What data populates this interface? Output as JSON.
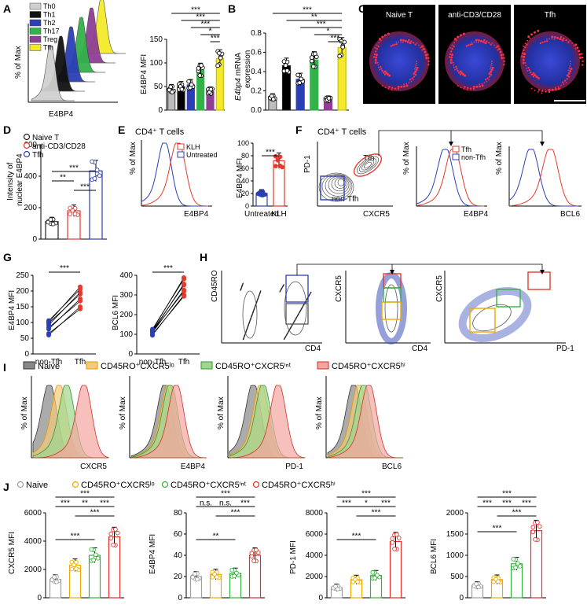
{
  "figure": {
    "colors": {
      "gray": "#bdbdbd",
      "black": "#111111",
      "blue": "#2b3fb5",
      "green": "#33b24a",
      "purple": "#8e3f94",
      "yellow": "#f4ea2b",
      "red": "#e23b2e",
      "naive": "#9e9e9e",
      "lo": "#f0a900",
      "int": "#36b23c",
      "hi": "#e0302a"
    },
    "panels": {
      "A": {
        "letter": "A",
        "hist": {
          "ylabel": "% of Max",
          "xlabel": "E4BP4",
          "legend": [
            "Th0",
            "Th1",
            "Th2",
            "Th17",
            "Treg",
            "Tfh"
          ]
        },
        "bar": {
          "ylabel": "E4BP4 MFI",
          "ticks": [
            "0",
            "50",
            "100",
            "150"
          ]
        }
      },
      "B": {
        "letter": "B",
        "ylabel": "E4bp4 mRNA expression",
        "ylabel_italic": "E4bp4",
        "ylabel_rest": " mRNA",
        "ylabel_line2": "expression",
        "ticks": [
          "0.0",
          "0.2",
          "0.4",
          "0.6",
          "0.8"
        ]
      },
      "C": {
        "letter": "C",
        "labels": [
          "Naive T",
          "anti-CD3/CD28",
          "Tfh"
        ]
      },
      "D": {
        "letter": "D",
        "ylabel_line1": "Intensity of",
        "ylabel_line2": "nuclear E4BP4",
        "ticks": [
          "0",
          "200",
          "400",
          "600"
        ],
        "legend": [
          "Naive T",
          "anti-CD3/CD28",
          "Tfh"
        ]
      },
      "E": {
        "letter": "E",
        "title": "CD4⁺ T cells",
        "hist_ylabel": "% of Max",
        "hist_xlabel": "E4BP4",
        "legend": [
          "KLH",
          "Untreated"
        ],
        "bar_ylabel": "E4BP4 MFI",
        "ticks": [
          "0",
          "20",
          "40",
          "60",
          "80",
          "100"
        ],
        "categories": [
          "Untreated",
          "KLH"
        ]
      },
      "F": {
        "letter": "F",
        "title": "CD4⁺ T cells",
        "y1": "PD-1",
        "x1": "CXCR5",
        "tfh": "Tfh",
        "nontfh": "non-Tfh",
        "y2": "% of Max",
        "x2": "E4BP4",
        "x3": "BCL6",
        "legend": [
          "Tfh",
          "non-Tfh"
        ]
      },
      "G": {
        "letter": "G",
        "left_ylabel": "E4BP4 MFI",
        "left_ticks": [
          "0",
          "50",
          "100",
          "150",
          "200",
          "250"
        ],
        "right_ylabel": "BCL6 MFI",
        "right_ticks": [
          "0",
          "100",
          "200",
          "300",
          "400"
        ],
        "categories": [
          "non-Tfh",
          "Tfh"
        ]
      },
      "H": {
        "letter": "H",
        "y1": "CD45RO",
        "x1": "CD4",
        "y2": "CXCR5",
        "x2": "CD4",
        "y3": "CXCR5",
        "x3": "PD-1"
      },
      "I": {
        "letter": "I",
        "legend": [
          "Naive",
          "CD45RO⁺CXCR5ˡᵒ",
          "CD45RO⁺CXCR5ⁱⁿᵗ",
          "CD45RO⁺CXCR5ʰⁱ"
        ],
        "ylabel": "% of Max",
        "xlabels": [
          "CXCR5",
          "E4BP4",
          "PD-1",
          "BCL6"
        ]
      },
      "J": {
        "letter": "J",
        "legend": [
          "Naive",
          "CD45RO⁺CXCR5ˡᵒ",
          "CD45RO⁺CXCR5ⁱⁿᵗ",
          "CD45RO⁺CXCR5ʰⁱ"
        ],
        "ylabels": [
          "CXCR5 MFI",
          "E4BP4 MFI",
          "PD-1 MFI",
          "BCL6 MFI"
        ],
        "ticks": [
          [
            "0",
            "2000",
            "4000",
            "6000"
          ],
          [
            "0",
            "20",
            "40",
            "60",
            "80"
          ],
          [
            "0",
            "2000",
            "4000",
            "6000",
            "8000"
          ],
          [
            "0",
            "500",
            "1000",
            "1500",
            "2000"
          ]
        ]
      }
    }
  },
  "chart_data": [
    {
      "panel": "A",
      "type": "bar",
      "categories": [
        "Th0",
        "Th1",
        "Th2",
        "Th17",
        "Treg",
        "Tfh"
      ],
      "values": [
        47,
        53,
        57,
        90,
        42,
        117
      ],
      "ylabel": "E4BP4 MFI",
      "ylim": [
        0,
        160
      ],
      "significance": [
        "***",
        "***",
        "***",
        "***",
        "*",
        "***"
      ]
    },
    {
      "panel": "B",
      "type": "bar",
      "categories": [
        "Th0",
        "Th1",
        "Th2",
        "Th17",
        "Treg",
        "Tfh"
      ],
      "values": [
        0.13,
        0.46,
        0.32,
        0.52,
        0.11,
        0.65
      ],
      "ylabel": "E4bp4 mRNA expression",
      "ylim": [
        0,
        0.8
      ],
      "significance": [
        "***",
        "**",
        "***",
        "*",
        "***"
      ]
    },
    {
      "panel": "D",
      "type": "bar",
      "categories": [
        "Naive T",
        "anti-CD3/CD28",
        "Tfh"
      ],
      "values": [
        120,
        195,
        470
      ],
      "ylabel": "Intensity of nuclear E4BP4",
      "ylim": [
        0,
        650
      ],
      "significance": [
        "**",
        "***",
        "***"
      ]
    },
    {
      "panel": "E",
      "type": "bar",
      "categories": [
        "Untreated",
        "KLH"
      ],
      "values": [
        20,
        72
      ],
      "ylabel": "E4BP4 MFI",
      "ylim": [
        0,
        100
      ],
      "significance": [
        "***"
      ]
    },
    {
      "panel": "G-left",
      "type": "scatter",
      "categories": [
        "non-Tfh",
        "Tfh"
      ],
      "pairs_low": [
        60,
        75,
        90,
        100
      ],
      "pairs_high": [
        150,
        180,
        200,
        215
      ],
      "ylabel": "E4BP4 MFI",
      "ylim": [
        0,
        250
      ],
      "significance": [
        "***"
      ]
    },
    {
      "panel": "G-right",
      "type": "scatter",
      "categories": [
        "non-Tfh",
        "Tfh"
      ],
      "pairs_low": [
        95,
        105,
        110,
        120
      ],
      "pairs_high": [
        300,
        330,
        360,
        390
      ],
      "ylabel": "BCL6 MFI",
      "ylim": [
        0,
        400
      ],
      "significance": [
        "***"
      ]
    },
    {
      "panel": "J-1",
      "type": "bar",
      "categories": [
        "Naive",
        "CD45RO⁺CXCR5ˡᵒ",
        "CD45RO⁺CXCR5ⁱⁿᵗ",
        "CD45RO⁺CXCR5ʰⁱ"
      ],
      "values": [
        1300,
        2300,
        3000,
        4300
      ],
      "ylabel": "CXCR5 MFI",
      "ylim": [
        0,
        6000
      ],
      "significance": [
        "***",
        "**",
        "***",
        "***",
        "***",
        "***"
      ]
    },
    {
      "panel": "J-2",
      "type": "bar",
      "categories": [
        "Naive",
        "CD45RO⁺CXCR5ˡᵒ",
        "CD45RO⁺CXCR5ⁱⁿᵗ",
        "CD45RO⁺CXCR5ʰⁱ"
      ],
      "values": [
        20,
        22,
        23,
        40
      ],
      "ylabel": "E4BP4 MFI",
      "ylim": [
        0,
        80
      ],
      "significance": [
        "n.s.",
        "n.s.",
        "***",
        "***",
        "**",
        "***"
      ]
    },
    {
      "panel": "J-3",
      "type": "bar",
      "categories": [
        "Naive",
        "CD45RO⁺CXCR5ˡᵒ",
        "CD45RO⁺CXCR5ⁱⁿᵗ",
        "CD45RO⁺CXCR5ʰⁱ"
      ],
      "values": [
        950,
        1700,
        2100,
        5300
      ],
      "ylabel": "PD-1 MFI",
      "ylim": [
        0,
        8000
      ],
      "significance": [
        "***",
        "*",
        "***",
        "***",
        "***",
        "***"
      ]
    },
    {
      "panel": "J-4",
      "type": "bar",
      "categories": [
        "Naive",
        "CD45RO⁺CXCR5ˡᵒ",
        "CD45RO⁺CXCR5ⁱⁿᵗ",
        "CD45RO⁺CXCR5ʰⁱ"
      ],
      "values": [
        290,
        430,
        800,
        1580
      ],
      "ylabel": "BCL6 MFI",
      "ylim": [
        0,
        2000
      ],
      "significance": [
        "***",
        "***",
        "***",
        "***",
        "***",
        "***"
      ]
    }
  ]
}
